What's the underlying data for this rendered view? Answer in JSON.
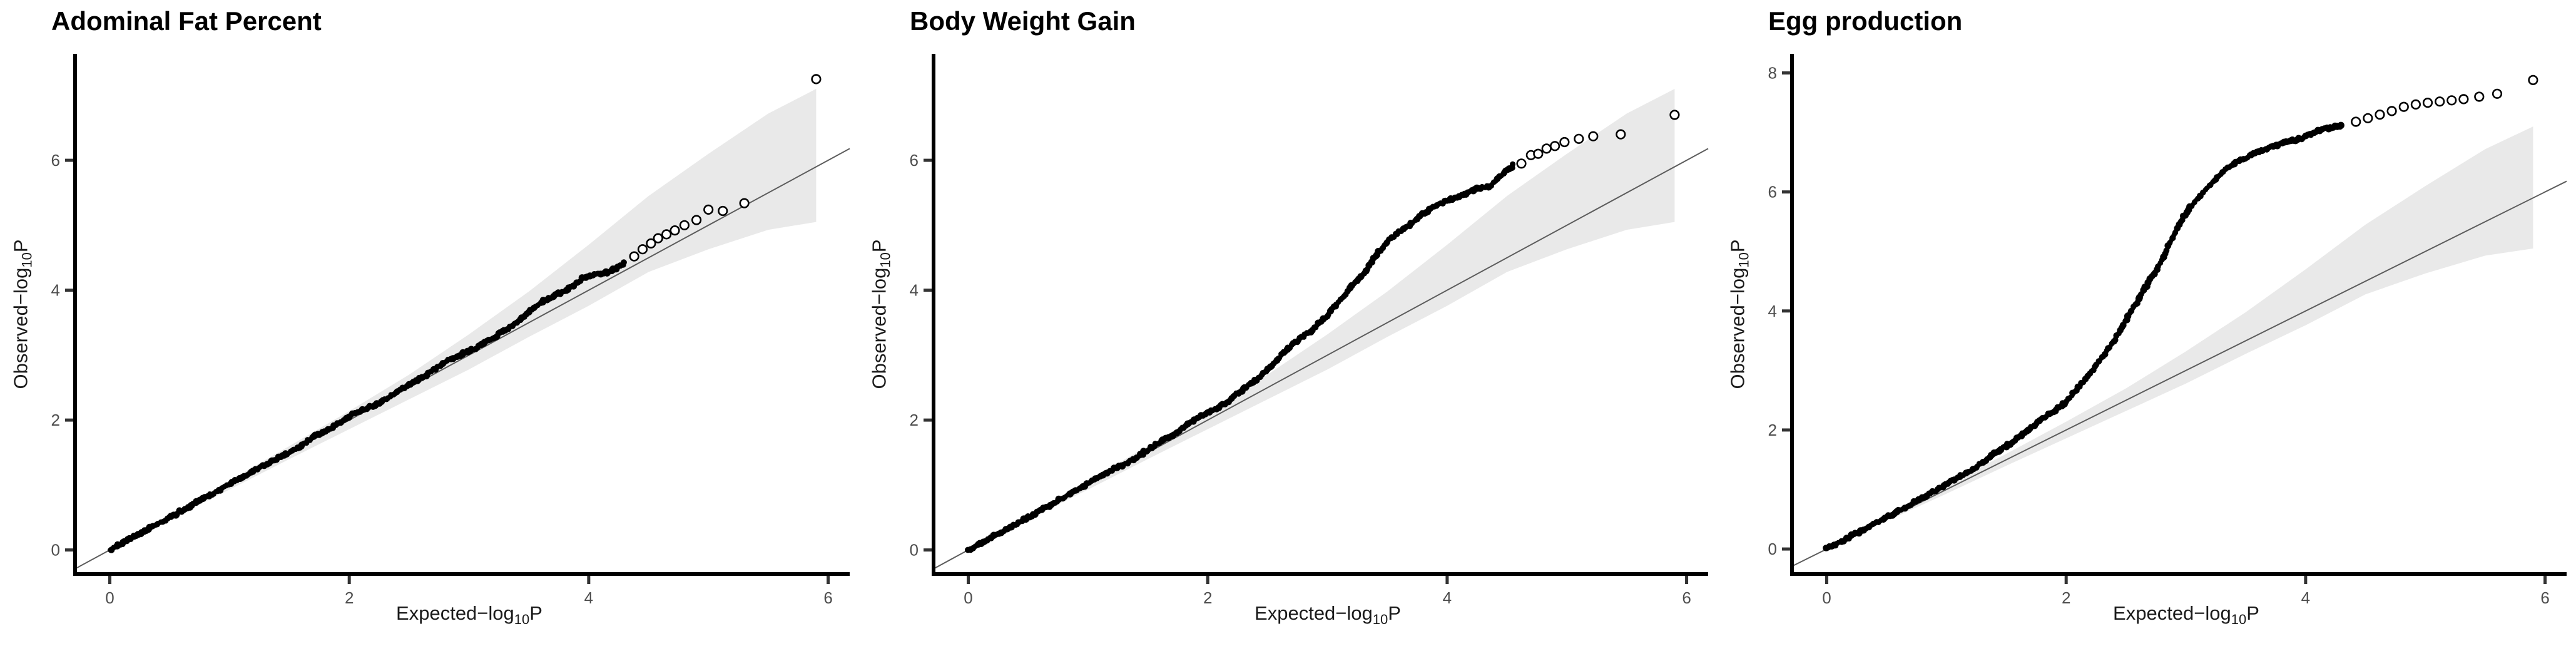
{
  "figure": {
    "background": "#ffffff",
    "panel_count": 3
  },
  "colors": {
    "point": "#000000",
    "axis_line": "#000000",
    "tick_mark": "#333333",
    "tick_label": "#4d4d4d",
    "axis_title": "#1a1a1a",
    "panel_title": "#000000",
    "identity_line": "#5c5c5c",
    "confidence_band": "#e9e9e9"
  },
  "chart_data": [
    {
      "type": "scatter",
      "subtype": "qq-plot",
      "title": "Adominal Fat Percent",
      "xlabel_parts": [
        "Expected−log",
        "10",
        "P"
      ],
      "ylabel_parts": [
        "Observed−log",
        "10",
        "P"
      ],
      "xticks": [
        0,
        2,
        4,
        6
      ],
      "yticks": [
        0,
        2,
        4,
        6
      ],
      "xlim": [
        -0.29,
        6.18
      ],
      "ylim": [
        -0.37,
        7.62
      ],
      "grid": false,
      "legend": "none",
      "identity_line": {
        "from": -0.29,
        "to": 6.18
      },
      "band": {
        "x": [
          0.5,
          1.0,
          1.5,
          2.0,
          2.5,
          3.0,
          3.5,
          4.0,
          4.5,
          5.0,
          5.5,
          5.9
        ],
        "upper": [
          0.53,
          1.07,
          1.6,
          2.14,
          2.7,
          3.32,
          3.98,
          4.7,
          5.45,
          6.1,
          6.72,
          7.1
        ],
        "lower": [
          0.47,
          0.93,
          1.4,
          1.86,
          2.32,
          2.78,
          3.28,
          3.76,
          4.28,
          4.63,
          4.93,
          5.05
        ]
      },
      "dense_curve": [
        [
          0,
          0
        ],
        [
          0.5,
          0.5
        ],
        [
          1,
          1.01
        ],
        [
          1.5,
          1.52
        ],
        [
          2,
          2.03
        ],
        [
          2.5,
          2.55
        ],
        [
          3,
          3.07
        ],
        [
          3.2,
          3.27
        ],
        [
          3.4,
          3.52
        ],
        [
          3.55,
          3.72
        ],
        [
          3.7,
          3.88
        ],
        [
          3.85,
          4.05
        ],
        [
          3.95,
          4.18
        ],
        [
          4.05,
          4.25
        ],
        [
          4.18,
          4.32
        ],
        [
          4.3,
          4.42
        ]
      ],
      "tail_points": [
        [
          4.38,
          4.52
        ],
        [
          4.45,
          4.63
        ],
        [
          4.52,
          4.72
        ],
        [
          4.58,
          4.8
        ],
        [
          4.65,
          4.86
        ],
        [
          4.72,
          4.92
        ],
        [
          4.8,
          5.0
        ],
        [
          4.9,
          5.08
        ],
        [
          5.0,
          5.24
        ],
        [
          5.12,
          5.22
        ],
        [
          5.3,
          5.34
        ],
        [
          5.9,
          7.25
        ]
      ]
    },
    {
      "type": "scatter",
      "subtype": "qq-plot",
      "title": "Body Weight Gain",
      "xlabel_parts": [
        "Expected−log",
        "10",
        "P"
      ],
      "ylabel_parts": [
        "Observed−log",
        "10",
        "P"
      ],
      "xticks": [
        0,
        2,
        4,
        6
      ],
      "yticks": [
        0,
        2,
        4,
        6
      ],
      "xlim": [
        -0.29,
        6.18
      ],
      "ylim": [
        -0.37,
        7.62
      ],
      "grid": false,
      "legend": "none",
      "identity_line": {
        "from": -0.29,
        "to": 6.18
      },
      "band": {
        "x": [
          0.5,
          1.0,
          1.5,
          2.0,
          2.5,
          3.0,
          3.5,
          4.0,
          4.5,
          5.0,
          5.5,
          5.9
        ],
        "upper": [
          0.53,
          1.07,
          1.6,
          2.14,
          2.7,
          3.32,
          3.98,
          4.7,
          5.45,
          6.1,
          6.72,
          7.1
        ],
        "lower": [
          0.47,
          0.93,
          1.4,
          1.86,
          2.32,
          2.78,
          3.28,
          3.76,
          4.28,
          4.63,
          4.93,
          5.05
        ]
      },
      "dense_curve": [
        [
          0,
          0
        ],
        [
          0.5,
          0.5
        ],
        [
          1,
          1.02
        ],
        [
          1.5,
          1.54
        ],
        [
          1.8,
          1.87
        ],
        [
          2,
          2.1
        ],
        [
          2.2,
          2.36
        ],
        [
          2.4,
          2.62
        ],
        [
          2.6,
          2.95
        ],
        [
          2.8,
          3.28
        ],
        [
          3,
          3.63
        ],
        [
          3.2,
          4.06
        ],
        [
          3.35,
          4.38
        ],
        [
          3.5,
          4.72
        ],
        [
          3.65,
          4.96
        ],
        [
          3.8,
          5.18
        ],
        [
          3.95,
          5.36
        ],
        [
          4.1,
          5.47
        ],
        [
          4.25,
          5.54
        ],
        [
          4.35,
          5.57
        ],
        [
          4.45,
          5.76
        ],
        [
          4.55,
          5.92
        ]
      ],
      "tail_points": [
        [
          4.62,
          5.95
        ],
        [
          4.7,
          6.08
        ],
        [
          4.76,
          6.1
        ],
        [
          4.83,
          6.18
        ],
        [
          4.9,
          6.22
        ],
        [
          4.98,
          6.28
        ],
        [
          5.1,
          6.33
        ],
        [
          5.22,
          6.37
        ],
        [
          5.45,
          6.4
        ],
        [
          5.9,
          6.7
        ]
      ]
    },
    {
      "type": "scatter",
      "subtype": "qq-plot",
      "title": "Egg production",
      "xlabel_parts": [
        "Expected−log",
        "10",
        "P"
      ],
      "ylabel_parts": [
        "Observed−log",
        "10",
        "P"
      ],
      "xticks": [
        0,
        2,
        4,
        6
      ],
      "yticks": [
        0,
        2,
        4,
        6,
        8
      ],
      "xlim": [
        -0.29,
        6.18
      ],
      "ylim": [
        -0.42,
        8.3
      ],
      "grid": false,
      "legend": "none",
      "identity_line": {
        "from": -0.29,
        "to": 6.18
      },
      "band": {
        "x": [
          0.5,
          1.0,
          1.5,
          2.0,
          2.5,
          3.0,
          3.5,
          4.0,
          4.5,
          5.0,
          5.5,
          5.9
        ],
        "upper": [
          0.53,
          1.07,
          1.6,
          2.14,
          2.7,
          3.32,
          3.98,
          4.7,
          5.45,
          6.1,
          6.72,
          7.1
        ],
        "lower": [
          0.47,
          0.93,
          1.4,
          1.86,
          2.32,
          2.78,
          3.28,
          3.76,
          4.28,
          4.63,
          4.93,
          5.05
        ]
      },
      "dense_curve": [
        [
          0,
          0
        ],
        [
          0.5,
          0.53
        ],
        [
          0.9,
          0.97
        ],
        [
          1.2,
          1.33
        ],
        [
          1.5,
          1.73
        ],
        [
          1.8,
          2.16
        ],
        [
          2,
          2.5
        ],
        [
          2.2,
          2.95
        ],
        [
          2.4,
          3.5
        ],
        [
          2.6,
          4.15
        ],
        [
          2.8,
          4.88
        ],
        [
          2.95,
          5.5
        ],
        [
          3.1,
          5.92
        ],
        [
          3.25,
          6.22
        ],
        [
          3.4,
          6.45
        ],
        [
          3.6,
          6.68
        ],
        [
          3.8,
          6.82
        ],
        [
          4.0,
          6.95
        ],
        [
          4.15,
          7.03
        ],
        [
          4.3,
          7.1
        ]
      ],
      "tail_points": [
        [
          4.42,
          7.18
        ],
        [
          4.52,
          7.24
        ],
        [
          4.62,
          7.3
        ],
        [
          4.72,
          7.36
        ],
        [
          4.82,
          7.43
        ],
        [
          4.92,
          7.47
        ],
        [
          5.02,
          7.5
        ],
        [
          5.12,
          7.52
        ],
        [
          5.22,
          7.54
        ],
        [
          5.32,
          7.56
        ],
        [
          5.45,
          7.6
        ],
        [
          5.6,
          7.65
        ],
        [
          5.9,
          7.88
        ]
      ]
    }
  ]
}
